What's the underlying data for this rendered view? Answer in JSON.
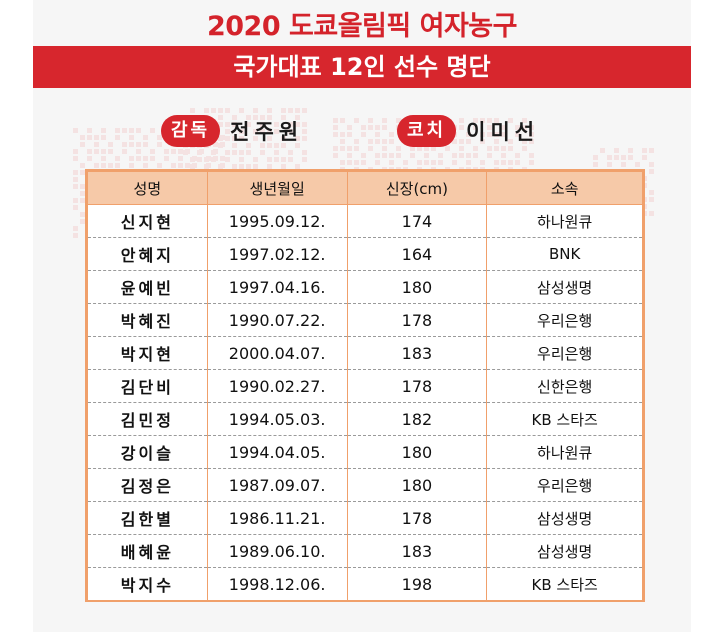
{
  "header": {
    "title": "2020 도쿄올림픽 여자농구",
    "subtitle": "국가대표 12인 선수 명단"
  },
  "staff": {
    "head_coach_label": "감독",
    "head_coach_name": "전주원",
    "coach_label": "코치",
    "coach_name": "이미선"
  },
  "roster": {
    "columns": [
      "성명",
      "생년월일",
      "신장(cm)",
      "소속"
    ],
    "rows": [
      {
        "name": "신지현",
        "birth": "1995.09.12.",
        "height": "174",
        "team": "하나원큐"
      },
      {
        "name": "안혜지",
        "birth": "1997.02.12.",
        "height": "164",
        "team": "BNK"
      },
      {
        "name": "윤예빈",
        "birth": "1997.04.16.",
        "height": "180",
        "team": "삼성생명"
      },
      {
        "name": "박혜진",
        "birth": "1990.07.22.",
        "height": "178",
        "team": "우리은행"
      },
      {
        "name": "박지현",
        "birth": "2000.04.07.",
        "height": "183",
        "team": "우리은행"
      },
      {
        "name": "김단비",
        "birth": "1990.02.27.",
        "height": "178",
        "team": "신한은행"
      },
      {
        "name": "김민정",
        "birth": "1994.05.03.",
        "height": "182",
        "team": "KB 스타즈"
      },
      {
        "name": "강이슬",
        "birth": "1994.04.05.",
        "height": "180",
        "team": "하나원큐"
      },
      {
        "name": "김정은",
        "birth": "1987.09.07.",
        "height": "180",
        "team": "우리은행"
      },
      {
        "name": "김한별",
        "birth": "1986.11.21.",
        "height": "178",
        "team": "삼성생명"
      },
      {
        "name": "배혜윤",
        "birth": "1989.06.10.",
        "height": "183",
        "team": "삼성생명"
      },
      {
        "name": "박지수",
        "birth": "1998.12.06.",
        "height": "198",
        "team": "KB 스타즈"
      }
    ]
  },
  "colors": {
    "accent": "#d7262d",
    "table_header": "#f6c9a8",
    "table_border": "#f0a06b",
    "background": "#f6f6f6"
  }
}
